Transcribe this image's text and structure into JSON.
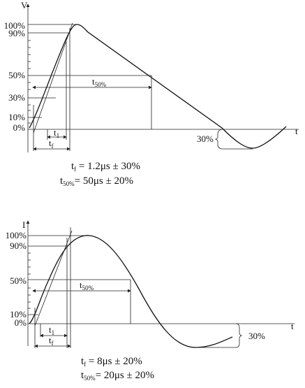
{
  "voltage_wave": {
    "axis_label": "V",
    "time_label": "t",
    "levels": [
      "100%",
      "90%",
      "50%",
      "30%",
      "10%",
      "0%"
    ],
    "t1": {
      "symbol": "t",
      "sub": "1"
    },
    "tf": {
      "symbol": "t",
      "sub": "f"
    },
    "t50": {
      "symbol": "t",
      "sub": "50%"
    },
    "undershoot": "30%",
    "formulas": [
      {
        "symbol": "t",
        "sub": "f",
        "text": " = 1.2μs ± 30%"
      },
      {
        "symbol": "t",
        "sub": "50%",
        "text": "= 50μs ± 20%"
      }
    ]
  },
  "current_wave": {
    "axis_label": "I",
    "time_label": "t",
    "levels": [
      "100%",
      "90%",
      "50%",
      "10%",
      "0%"
    ],
    "t1": {
      "symbol": "t",
      "sub": "1"
    },
    "tf": {
      "symbol": "t",
      "sub": "f"
    },
    "t50": {
      "symbol": "t",
      "sub": "50%"
    },
    "undershoot": "30%",
    "formulas": [
      {
        "symbol": "t",
        "sub": "f",
        "text": " = 8μs ± 20%"
      },
      {
        "symbol": "t",
        "sub": "50%",
        "text": "= 20μs ± 20%"
      }
    ]
  }
}
